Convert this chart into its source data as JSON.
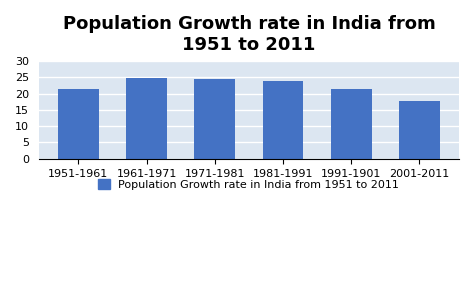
{
  "categories": [
    "1951-1961",
    "1961-1971",
    "1971-1981",
    "1981-1991",
    "1991-1901",
    "2001-2011"
  ],
  "values": [
    21.5,
    24.8,
    24.4,
    23.8,
    21.5,
    17.6
  ],
  "bar_color": "#4472C4",
  "title_line1": "Population Growth rate in India from",
  "title_line2": "1951 to 2011",
  "ylim": [
    0,
    30
  ],
  "yticks": [
    0,
    5,
    10,
    15,
    20,
    25,
    30
  ],
  "legend_label": "Population Growth rate in India from 1951 to 2011",
  "background_color": "#DCE6F1",
  "plot_bg_color": "#DCE6F1",
  "outer_bg_color": "#FFFFFF",
  "title_fontsize": 13,
  "legend_fontsize": 8,
  "tick_fontsize": 8,
  "grid_color": "#FFFFFF"
}
